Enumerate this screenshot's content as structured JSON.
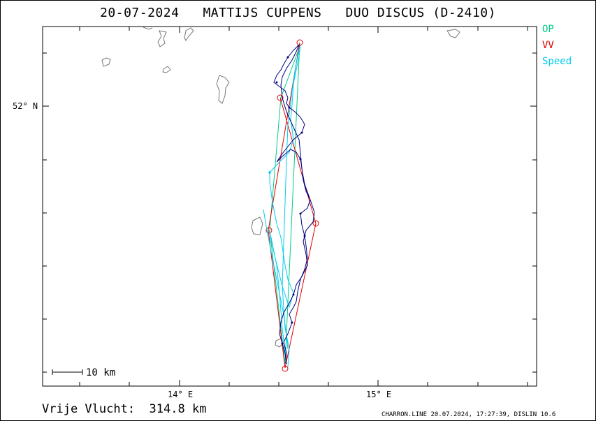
{
  "title": "20-07-2024   MATTIJS CUPPENS   DUO DISCUS (D-2410)",
  "legend": {
    "op": {
      "label": "OP",
      "color": "#00cc88"
    },
    "vv": {
      "label": "VV",
      "color": "#dd0000"
    },
    "speed": {
      "label": "Speed",
      "color": "#00ccee"
    }
  },
  "track_color": "#000080",
  "coast_color": "#777777",
  "axes": {
    "lat_label": "52° N",
    "lon_labels": [
      "14° E",
      "15° E"
    ]
  },
  "scale_bar": "10 km",
  "footer": {
    "distance_label": "Vrije Vlucht:",
    "distance_value": "314.8 km",
    "credit": "CHARRON.LINE 20.07.2024, 17:27:39, DISLIN 10.6"
  }
}
